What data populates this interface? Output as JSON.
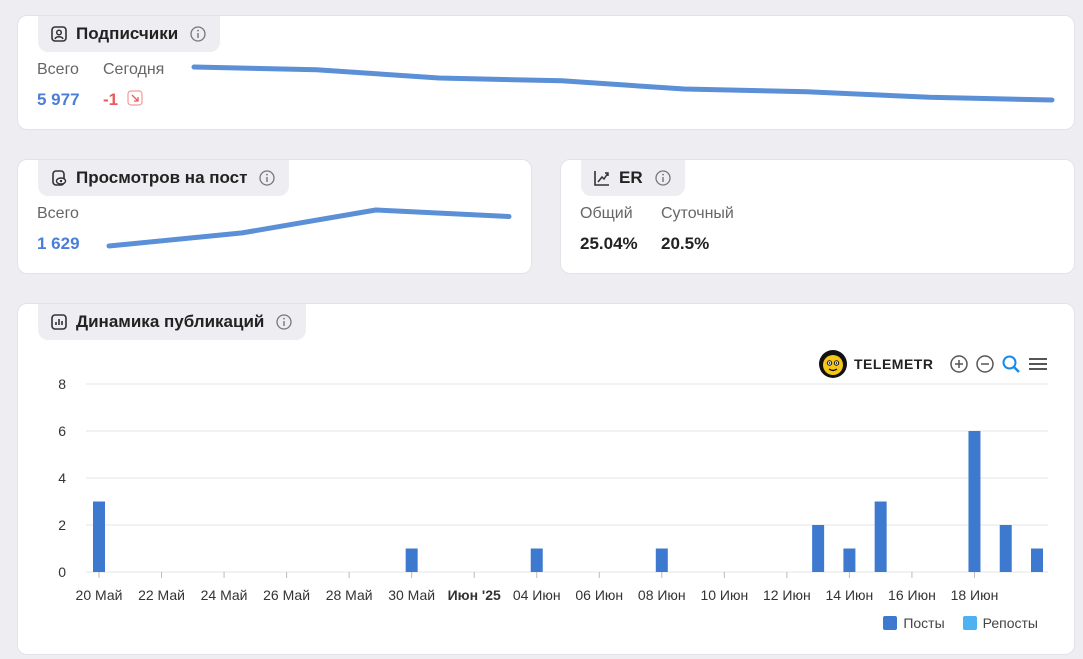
{
  "subscribers": {
    "title": "Подписчики",
    "total_label": "Всего",
    "total_value": "5 977",
    "today_label": "Сегодня",
    "today_value": "-1",
    "trend_icon": "arrow-down-right-icon",
    "sparkline": [
      5990,
      5989,
      5986,
      5985,
      5982,
      5981,
      5979,
      5978
    ]
  },
  "views": {
    "title": "Просмотров на пост",
    "total_label": "Всего",
    "total_value": "1 629",
    "sparkline": [
      1500,
      1540,
      1610,
      1590
    ]
  },
  "er": {
    "title": "ER",
    "total_label": "Общий",
    "total_value": "25.04%",
    "daily_label": "Суточный",
    "daily_value": "20.5%"
  },
  "publications": {
    "title": "Динамика публикаций",
    "brand": "TELEMETR",
    "toolbar": [
      "zoom-in-icon",
      "zoom-out-icon",
      "magnifier-icon",
      "menu-icon"
    ],
    "legend": {
      "posts": "Посты",
      "reposts": "Репосты"
    },
    "colors": {
      "posts": "#3d7acf",
      "reposts": "#4db2ef"
    }
  },
  "chart_data": {
    "type": "bar",
    "title": "Динамика публикаций",
    "xlabel": "",
    "ylabel": "",
    "ylim": [
      0,
      8
    ],
    "yticks": [
      0,
      2,
      4,
      6,
      8
    ],
    "xticks": [
      "20 Май",
      "22 Май",
      "24 Май",
      "26 Май",
      "28 Май",
      "30 Май",
      "Июн '25",
      "04 Июн",
      "06 Июн",
      "08 Июн",
      "10 Июн",
      "12 Июн",
      "14 Июн",
      "16 Июн",
      "18 Июн"
    ],
    "xticks_bold": [
      "Июн '25"
    ],
    "categories": [
      "20 Май",
      "21 Май",
      "22 Май",
      "23 Май",
      "24 Май",
      "25 Май",
      "26 Май",
      "27 Май",
      "28 Май",
      "29 Май",
      "30 Май",
      "31 Май",
      "01 Июн",
      "02 Июн",
      "03 Июн",
      "04 Июн",
      "05 Июн",
      "06 Июн",
      "07 Июн",
      "08 Июн",
      "09 Июн",
      "10 Июн",
      "11 Июн",
      "12 Июн",
      "13 Июн",
      "14 Июн",
      "15 Июн",
      "16 Июн",
      "17 Июн",
      "18 Июн",
      "19 Июн"
    ],
    "series": [
      {
        "name": "Посты",
        "values": [
          3,
          0,
          0,
          0,
          0,
          0,
          0,
          0,
          0,
          0,
          1,
          0,
          0,
          0,
          1,
          0,
          0,
          0,
          1,
          0,
          0,
          0,
          0,
          2,
          1,
          3,
          0,
          0,
          6,
          2,
          1
        ]
      },
      {
        "name": "Репосты",
        "values": [
          0,
          0,
          0,
          0,
          0,
          0,
          0,
          0,
          0,
          0,
          0,
          0,
          0,
          0,
          0,
          0,
          0,
          0,
          0,
          0,
          0,
          0,
          0,
          0,
          0,
          0,
          0,
          0,
          0,
          0,
          0
        ]
      }
    ]
  }
}
